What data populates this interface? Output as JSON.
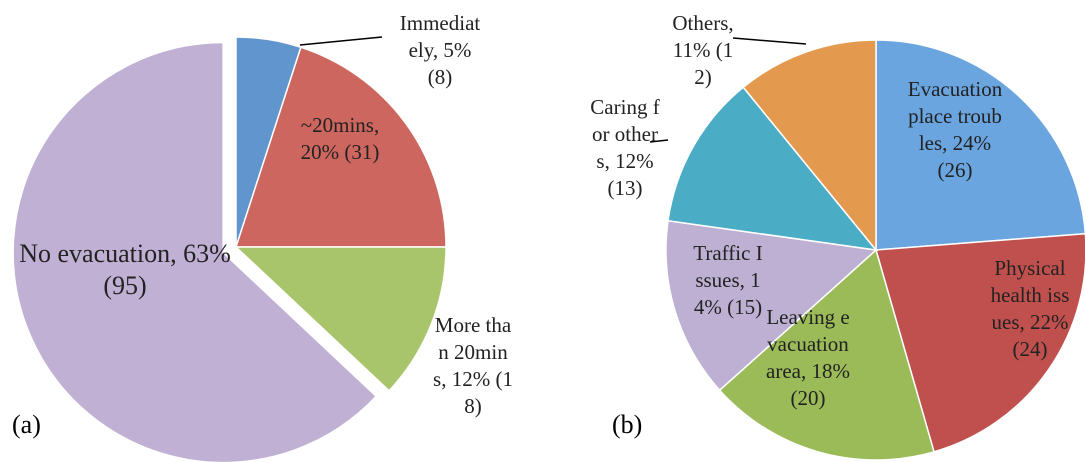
{
  "chart_data": [
    {
      "type": "pie",
      "title": "(a)",
      "categories": [
        "Immediately",
        "~20mins",
        "More than 20mins",
        "No evacuation"
      ],
      "values": [
        5,
        20,
        12,
        63
      ],
      "value_labels": [
        "5%",
        "20%",
        "12%",
        "63%"
      ],
      "count_labels": [
        "(8)",
        "(31)",
        "(18)",
        "(95)"
      ],
      "colors": [
        "#6195cd",
        "#cd665f",
        "#a9c56b",
        "#c0b1d4"
      ]
    },
    {
      "type": "pie",
      "title": "(b)",
      "categories": [
        "Evacuation place troubles",
        "Physical health issues",
        "Leaving evacuation area",
        "Traffic Issues",
        "Caring for others",
        "Others"
      ],
      "values": [
        24,
        22,
        18,
        14,
        12,
        11
      ],
      "value_labels": [
        "24%",
        "22%",
        "18%",
        "14%",
        "12%",
        "11%"
      ],
      "count_labels": [
        "(26)",
        "(24)",
        "(20)",
        "(15)",
        "(13)",
        "(12)"
      ],
      "colors": [
        "#6aa5df",
        "#c0504d",
        "#9bbb59",
        "#bdb0d3",
        "#4bacc6",
        "#e49a4e"
      ]
    }
  ]
}
